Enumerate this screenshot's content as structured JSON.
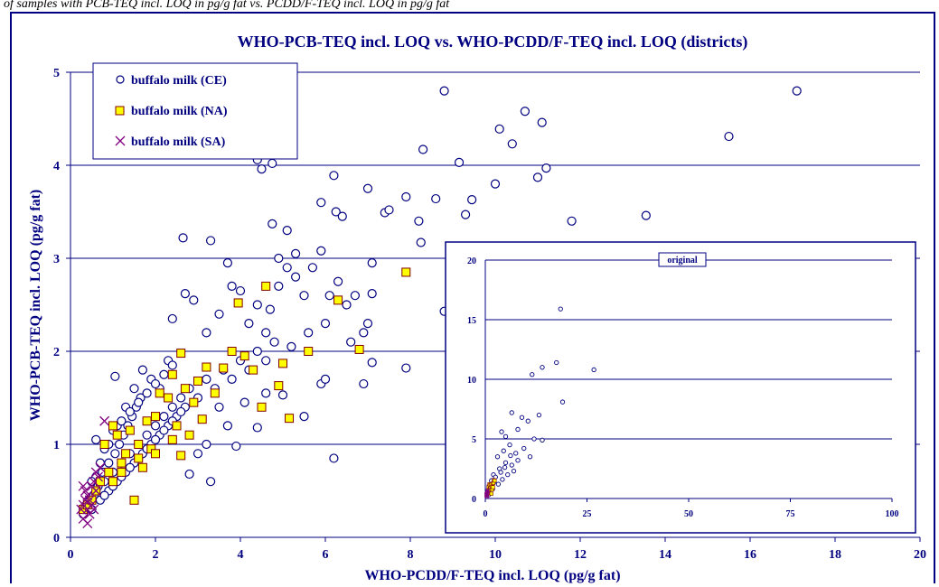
{
  "caption": "of samples with PCB-TEQ incl. LOQ in pg/g fat vs. PCDD/F-TEQ incl. LOQ in pg/g fat",
  "chart_data": [
    {
      "type": "scatter",
      "title": "WHO-PCB-TEQ incl. LOQ vs. WHO-PCDD/F-TEQ incl. LOQ (districts)",
      "xlabel": "WHO-PCDD/F-TEQ incl. LOQ (pg/g fat)",
      "ylabel": "WHO-PCB-TEQ incl. LOQ (pg/g fat)",
      "xlim": [
        0,
        20
      ],
      "ylim": [
        0,
        5
      ],
      "xticks": [
        "0",
        "2",
        "4",
        "6",
        "8",
        "10",
        "12",
        "14",
        "16",
        "18",
        "20"
      ],
      "yticks": [
        "0",
        "1",
        "2",
        "3",
        "4",
        "5"
      ],
      "grid": "horizontal",
      "legend_position": "top-left",
      "colors": {
        "navy": "#000080",
        "marker_fill": "#ffff00",
        "purple": "#800080"
      },
      "series": [
        {
          "name": "buffalo milk (CE)",
          "marker": "circle",
          "points": [
            [
              0.3,
              0.25
            ],
            [
              0.35,
              0.3
            ],
            [
              0.4,
              0.35
            ],
            [
              0.45,
              0.4
            ],
            [
              0.5,
              0.3
            ],
            [
              0.55,
              0.45
            ],
            [
              0.6,
              0.5
            ],
            [
              0.65,
              0.55
            ],
            [
              0.7,
              0.4
            ],
            [
              0.8,
              0.6
            ],
            [
              0.9,
              0.5
            ],
            [
              1.0,
              0.7
            ],
            [
              1.1,
              0.6
            ],
            [
              1.2,
              0.8
            ],
            [
              1.3,
              0.7
            ],
            [
              1.4,
              0.9
            ],
            [
              1.5,
              0.8
            ],
            [
              1.6,
              1.0
            ],
            [
              1.7,
              0.9
            ],
            [
              1.8,
              1.1
            ],
            [
              1.9,
              1.0
            ],
            [
              2.0,
              1.2
            ],
            [
              2.1,
              1.1
            ],
            [
              2.2,
              1.3
            ],
            [
              2.3,
              1.2
            ],
            [
              2.4,
              1.4
            ],
            [
              2.5,
              1.3
            ],
            [
              2.6,
              1.5
            ],
            [
              2.7,
              1.4
            ],
            [
              2.8,
              1.6
            ],
            [
              3.0,
              1.5
            ],
            [
              3.2,
              1.7
            ],
            [
              3.4,
              1.6
            ],
            [
              3.6,
              1.8
            ],
            [
              3.8,
              1.7
            ],
            [
              4.0,
              1.9
            ],
            [
              4.2,
              1.8
            ],
            [
              4.4,
              2.0
            ],
            [
              4.6,
              1.9
            ],
            [
              4.8,
              2.1
            ],
            [
              0.6,
              0.65
            ],
            [
              0.75,
              0.7
            ],
            [
              0.9,
              0.8
            ],
            [
              1.05,
              0.9
            ],
            [
              1.15,
              1.0
            ],
            [
              1.25,
              1.1
            ],
            [
              1.35,
              1.2
            ],
            [
              1.45,
              1.3
            ],
            [
              1.55,
              1.4
            ],
            [
              1.65,
              1.5
            ],
            [
              0.8,
              0.45
            ],
            [
              1.0,
              0.55
            ],
            [
              1.2,
              0.65
            ],
            [
              1.4,
              0.75
            ],
            [
              1.6,
              0.85
            ],
            [
              1.8,
              0.95
            ],
            [
              2.0,
              1.05
            ],
            [
              2.2,
              1.15
            ],
            [
              2.4,
              1.25
            ],
            [
              2.6,
              1.35
            ],
            [
              0.5,
              0.6
            ],
            [
              0.7,
              0.8
            ],
            [
              0.9,
              1.0
            ],
            [
              1.1,
              1.2
            ],
            [
              1.3,
              1.4
            ],
            [
              1.5,
              1.6
            ],
            [
              1.7,
              1.8
            ],
            [
              1.9,
              1.7
            ],
            [
              2.1,
              1.6
            ],
            [
              2.3,
              1.9
            ],
            [
              0.6,
              1.05
            ],
            [
              0.8,
              0.95
            ],
            [
              1.0,
              1.15
            ],
            [
              1.2,
              1.25
            ],
            [
              1.4,
              1.35
            ],
            [
              1.6,
              1.45
            ],
            [
              1.8,
              1.55
            ],
            [
              2.0,
              1.65
            ],
            [
              2.2,
              1.75
            ],
            [
              2.4,
              1.85
            ],
            [
              1.05,
              1.73
            ],
            [
              2.4,
              2.35
            ],
            [
              2.65,
              3.22
            ],
            [
              3.3,
              3.19
            ],
            [
              2.7,
              2.62
            ],
            [
              2.9,
              2.55
            ],
            [
              3.2,
              2.2
            ],
            [
              3.5,
              2.4
            ],
            [
              3.8,
              2.7
            ],
            [
              3.7,
              2.95
            ],
            [
              4.0,
              2.65
            ],
            [
              4.2,
              2.3
            ],
            [
              4.4,
              2.5
            ],
            [
              4.6,
              2.2
            ],
            [
              4.7,
              2.45
            ],
            [
              4.9,
              2.7
            ],
            [
              5.1,
              2.9
            ],
            [
              5.3,
              3.05
            ],
            [
              4.4,
              4.06
            ],
            [
              4.5,
              3.96
            ],
            [
              4.75,
              4.02
            ],
            [
              4.75,
              3.37
            ],
            [
              4.9,
              3.0
            ],
            [
              5.1,
              3.3
            ],
            [
              5.3,
              2.8
            ],
            [
              5.5,
              2.6
            ],
            [
              5.7,
              2.9
            ],
            [
              5.9,
              3.08
            ],
            [
              6.0,
              2.3
            ],
            [
              5.9,
              3.6
            ],
            [
              6.2,
              3.89
            ],
            [
              6.25,
              3.5
            ],
            [
              6.4,
              3.45
            ],
            [
              6.3,
              2.75
            ],
            [
              6.5,
              2.5
            ],
            [
              6.7,
              2.6
            ],
            [
              6.9,
              2.2
            ],
            [
              7.0,
              3.75
            ],
            [
              7.1,
              2.95
            ],
            [
              7.1,
              2.62
            ],
            [
              7.4,
              3.49
            ],
            [
              7.5,
              3.52
            ],
            [
              7.9,
              3.66
            ],
            [
              8.2,
              3.4
            ],
            [
              8.25,
              3.17
            ],
            [
              8.3,
              4.17
            ],
            [
              8.6,
              3.64
            ],
            [
              8.8,
              4.8
            ],
            [
              9.15,
              4.03
            ],
            [
              9.3,
              3.47
            ],
            [
              9.45,
              3.63
            ],
            [
              10.0,
              3.8
            ],
            [
              10.1,
              4.39
            ],
            [
              10.4,
              4.23
            ],
            [
              10.7,
              4.58
            ],
            [
              11.0,
              3.87
            ],
            [
              11.1,
              4.46
            ],
            [
              11.2,
              3.97
            ],
            [
              11.8,
              3.4
            ],
            [
              13.55,
              3.46
            ],
            [
              15.5,
              4.31
            ],
            [
              17.1,
              4.8
            ],
            [
              5.5,
              1.3
            ],
            [
              5.9,
              1.65
            ],
            [
              6.0,
              1.7
            ],
            [
              6.2,
              0.85
            ],
            [
              6.9,
              1.65
            ],
            [
              7.1,
              1.88
            ],
            [
              7.9,
              1.82
            ],
            [
              8.8,
              2.43
            ],
            [
              3.2,
              1.0
            ],
            [
              3.3,
              0.6
            ],
            [
              3.0,
              0.9
            ],
            [
              2.8,
              0.68
            ],
            [
              3.9,
              0.98
            ],
            [
              4.4,
              1.18
            ],
            [
              4.6,
              1.55
            ],
            [
              3.5,
              1.4
            ],
            [
              3.7,
              1.2
            ],
            [
              4.1,
              1.45
            ],
            [
              5.0,
              1.53
            ],
            [
              5.2,
              2.05
            ],
            [
              5.6,
              2.2
            ],
            [
              6.1,
              2.6
            ],
            [
              6.6,
              2.1
            ],
            [
              7.0,
              2.3
            ]
          ]
        },
        {
          "name": "buffalo milk (NA)",
          "marker": "square",
          "points": [
            [
              0.3,
              0.3
            ],
            [
              0.4,
              0.35
            ],
            [
              0.5,
              0.4
            ],
            [
              0.6,
              0.5
            ],
            [
              0.7,
              0.6
            ],
            [
              0.8,
              1.0
            ],
            [
              0.9,
              0.7
            ],
            [
              1.0,
              1.2
            ],
            [
              1.1,
              1.1
            ],
            [
              1.2,
              0.8
            ],
            [
              1.3,
              0.9
            ],
            [
              1.4,
              1.15
            ],
            [
              1.5,
              0.4
            ],
            [
              1.6,
              1.0
            ],
            [
              1.7,
              0.75
            ],
            [
              1.8,
              1.25
            ],
            [
              1.9,
              0.95
            ],
            [
              2.0,
              1.3
            ],
            [
              2.1,
              1.55
            ],
            [
              2.3,
              1.5
            ],
            [
              2.4,
              1.75
            ],
            [
              2.5,
              1.2
            ],
            [
              2.6,
              1.98
            ],
            [
              2.7,
              1.6
            ],
            [
              2.9,
              1.45
            ],
            [
              3.0,
              1.68
            ],
            [
              3.1,
              1.27
            ],
            [
              3.2,
              1.83
            ],
            [
              3.4,
              1.55
            ],
            [
              3.6,
              1.82
            ],
            [
              3.8,
              2.0
            ],
            [
              3.95,
              2.52
            ],
            [
              4.1,
              1.95
            ],
            [
              4.3,
              1.8
            ],
            [
              4.5,
              1.4
            ],
            [
              4.6,
              2.7
            ],
            [
              4.9,
              1.63
            ],
            [
              5.0,
              1.87
            ],
            [
              5.15,
              1.28
            ],
            [
              5.6,
              2.0
            ],
            [
              6.3,
              2.55
            ],
            [
              6.8,
              2.02
            ],
            [
              7.9,
              2.85
            ],
            [
              1.2,
              0.7
            ],
            [
              1.6,
              0.85
            ],
            [
              2.0,
              0.9
            ],
            [
              2.4,
              1.05
            ],
            [
              2.6,
              0.88
            ],
            [
              2.8,
              1.1
            ],
            [
              1.0,
              0.6
            ]
          ]
        },
        {
          "name": "buffalo milk (SA)",
          "marker": "x",
          "points": [
            [
              0.25,
              0.3
            ],
            [
              0.3,
              0.35
            ],
            [
              0.35,
              0.4
            ],
            [
              0.4,
              0.45
            ],
            [
              0.45,
              0.25
            ],
            [
              0.5,
              0.55
            ],
            [
              0.55,
              0.6
            ],
            [
              0.6,
              0.7
            ],
            [
              0.3,
              0.2
            ],
            [
              0.4,
              0.15
            ],
            [
              0.35,
              0.5
            ],
            [
              0.45,
              0.4
            ],
            [
              0.5,
              0.35
            ],
            [
              0.6,
              0.5
            ],
            [
              0.65,
              0.65
            ],
            [
              0.8,
              1.25
            ],
            [
              0.7,
              0.75
            ],
            [
              0.55,
              0.3
            ],
            [
              0.3,
              0.55
            ],
            [
              0.4,
              0.3
            ]
          ]
        }
      ]
    },
    {
      "type": "scatter",
      "title": "original",
      "xlim": [
        0,
        100
      ],
      "ylim": [
        0,
        20
      ],
      "xticks": [
        "0",
        "25",
        "50",
        "75",
        "100"
      ],
      "yticks": [
        "0",
        "5",
        "10",
        "15",
        "20"
      ],
      "grid": "horizontal",
      "points": [
        [
          18.5,
          15.9
        ],
        [
          11.5,
          10.4
        ],
        [
          14.0,
          11.0
        ],
        [
          17.5,
          11.4
        ],
        [
          26.7,
          10.8
        ],
        [
          19.0,
          8.1
        ],
        [
          13.2,
          7.0
        ],
        [
          6.5,
          7.2
        ],
        [
          9.0,
          6.8
        ],
        [
          10.5,
          6.5
        ],
        [
          14.0,
          4.9
        ],
        [
          12.0,
          5.0
        ],
        [
          4.0,
          5.6
        ],
        [
          5.0,
          5.2
        ],
        [
          8.0,
          5.8
        ],
        [
          3.0,
          3.5
        ],
        [
          4.5,
          4.0
        ],
        [
          6.0,
          4.5
        ],
        [
          7.5,
          3.8
        ],
        [
          9.5,
          4.2
        ],
        [
          11.0,
          3.5
        ],
        [
          2.0,
          2.0
        ],
        [
          3.5,
          2.5
        ],
        [
          5.0,
          3.0
        ],
        [
          6.5,
          2.8
        ],
        [
          8.0,
          3.2
        ],
        [
          1.5,
          1.5
        ],
        [
          2.5,
          1.8
        ],
        [
          1.0,
          1.0
        ],
        [
          0.5,
          0.5
        ],
        [
          1.8,
          0.8
        ],
        [
          3.2,
          1.2
        ],
        [
          4.2,
          1.6
        ],
        [
          5.5,
          2.0
        ],
        [
          7.0,
          2.3
        ],
        [
          0.8,
          0.3
        ],
        [
          2.2,
          1.4
        ],
        [
          3.8,
          2.2
        ],
        [
          4.8,
          2.6
        ],
        [
          6.2,
          3.6
        ]
      ]
    }
  ]
}
